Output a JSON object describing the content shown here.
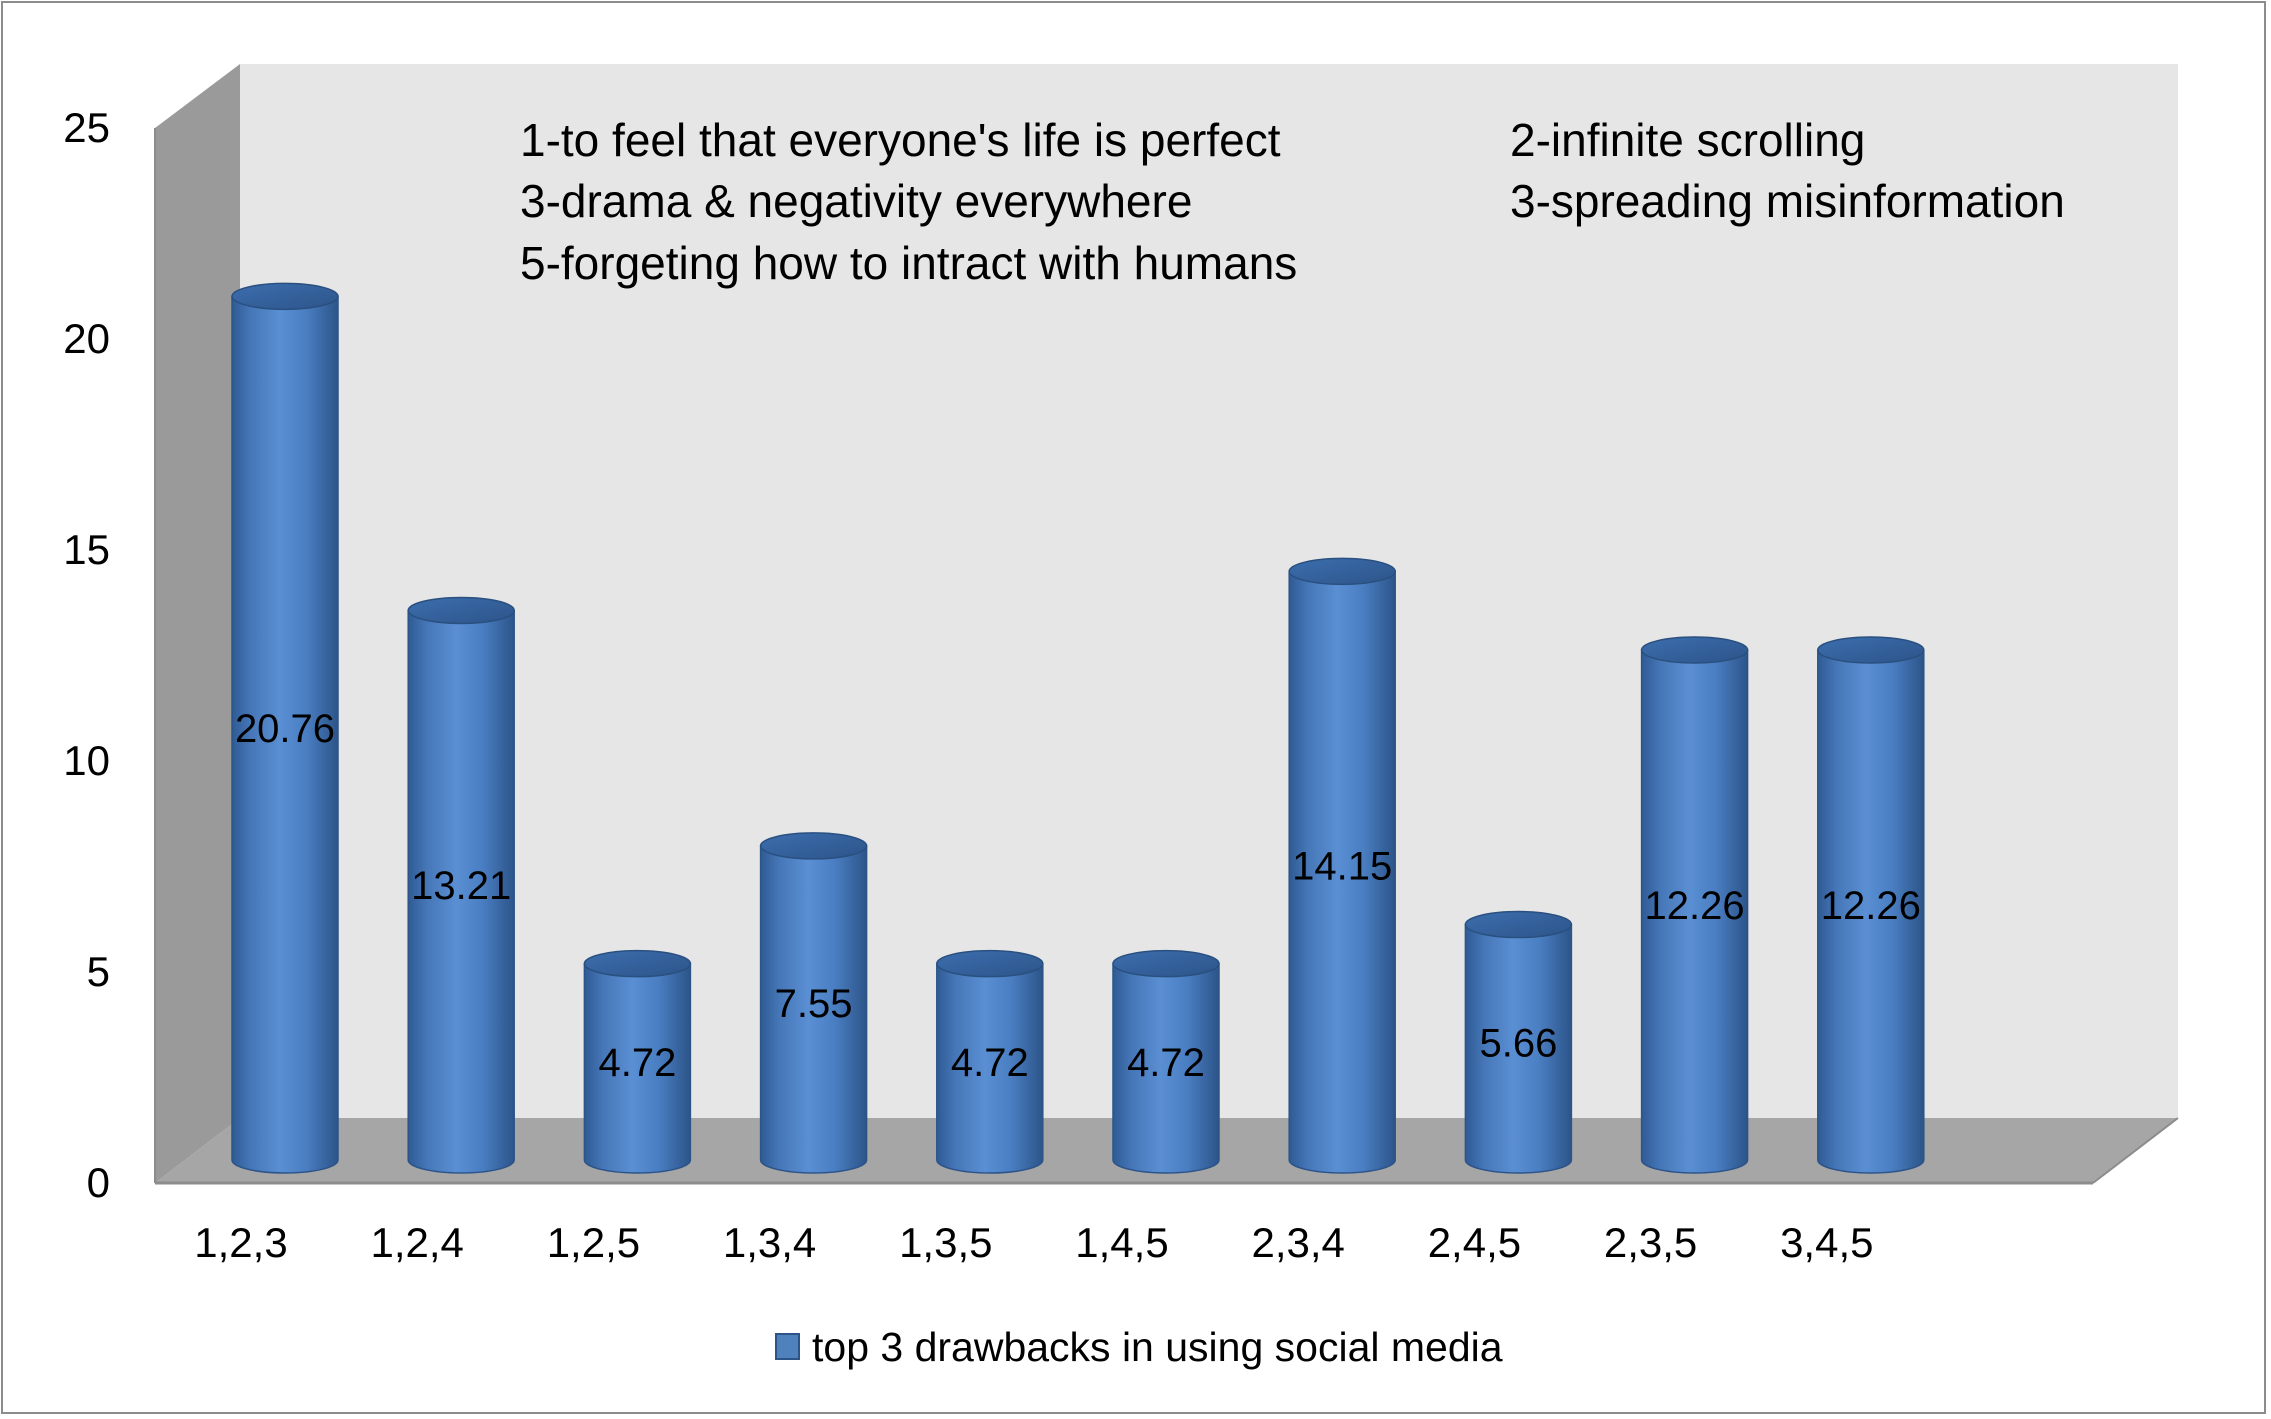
{
  "chart_data": {
    "type": "bar",
    "style": "3d-cylinder",
    "categories": [
      "1,2,3",
      "1,2,4",
      "1,2,5",
      "1,3,4",
      "1,3,5",
      "1,4,5",
      "2,3,4",
      "2,4,5",
      "2,3,5",
      "3,4,5"
    ],
    "series": [
      {
        "name": "top 3 drawbacks in using social media",
        "values": [
          20.76,
          13.21,
          4.72,
          7.55,
          4.72,
          4.72,
          14.15,
          5.66,
          12.26,
          12.26
        ],
        "color": "#4f81bd"
      }
    ],
    "data_labels": [
      "20.76",
      "13.21",
      "4.72",
      "7.55",
      "4.72",
      "4.72",
      "14.15",
      "5.66",
      "12.26",
      "12.26"
    ],
    "y_ticks": [
      "0",
      "5",
      "10",
      "15",
      "20",
      "25"
    ],
    "ylim": [
      0,
      25
    ],
    "annotations": [
      "1-to feel that everyone's life is perfect",
      "2-infinite scrolling",
      "3-drama & negativity everywhere",
      "3-spreading misinformation",
      "5-forgeting how to intract with humans"
    ],
    "legend_position": "bottom",
    "grid": false,
    "colors": {
      "bar": "#4f81bd",
      "bar_dark": "#2c5489",
      "wall": "#e6e6e6",
      "side_wall": "#9a9a9a",
      "floor": "#a6a6a6"
    }
  }
}
